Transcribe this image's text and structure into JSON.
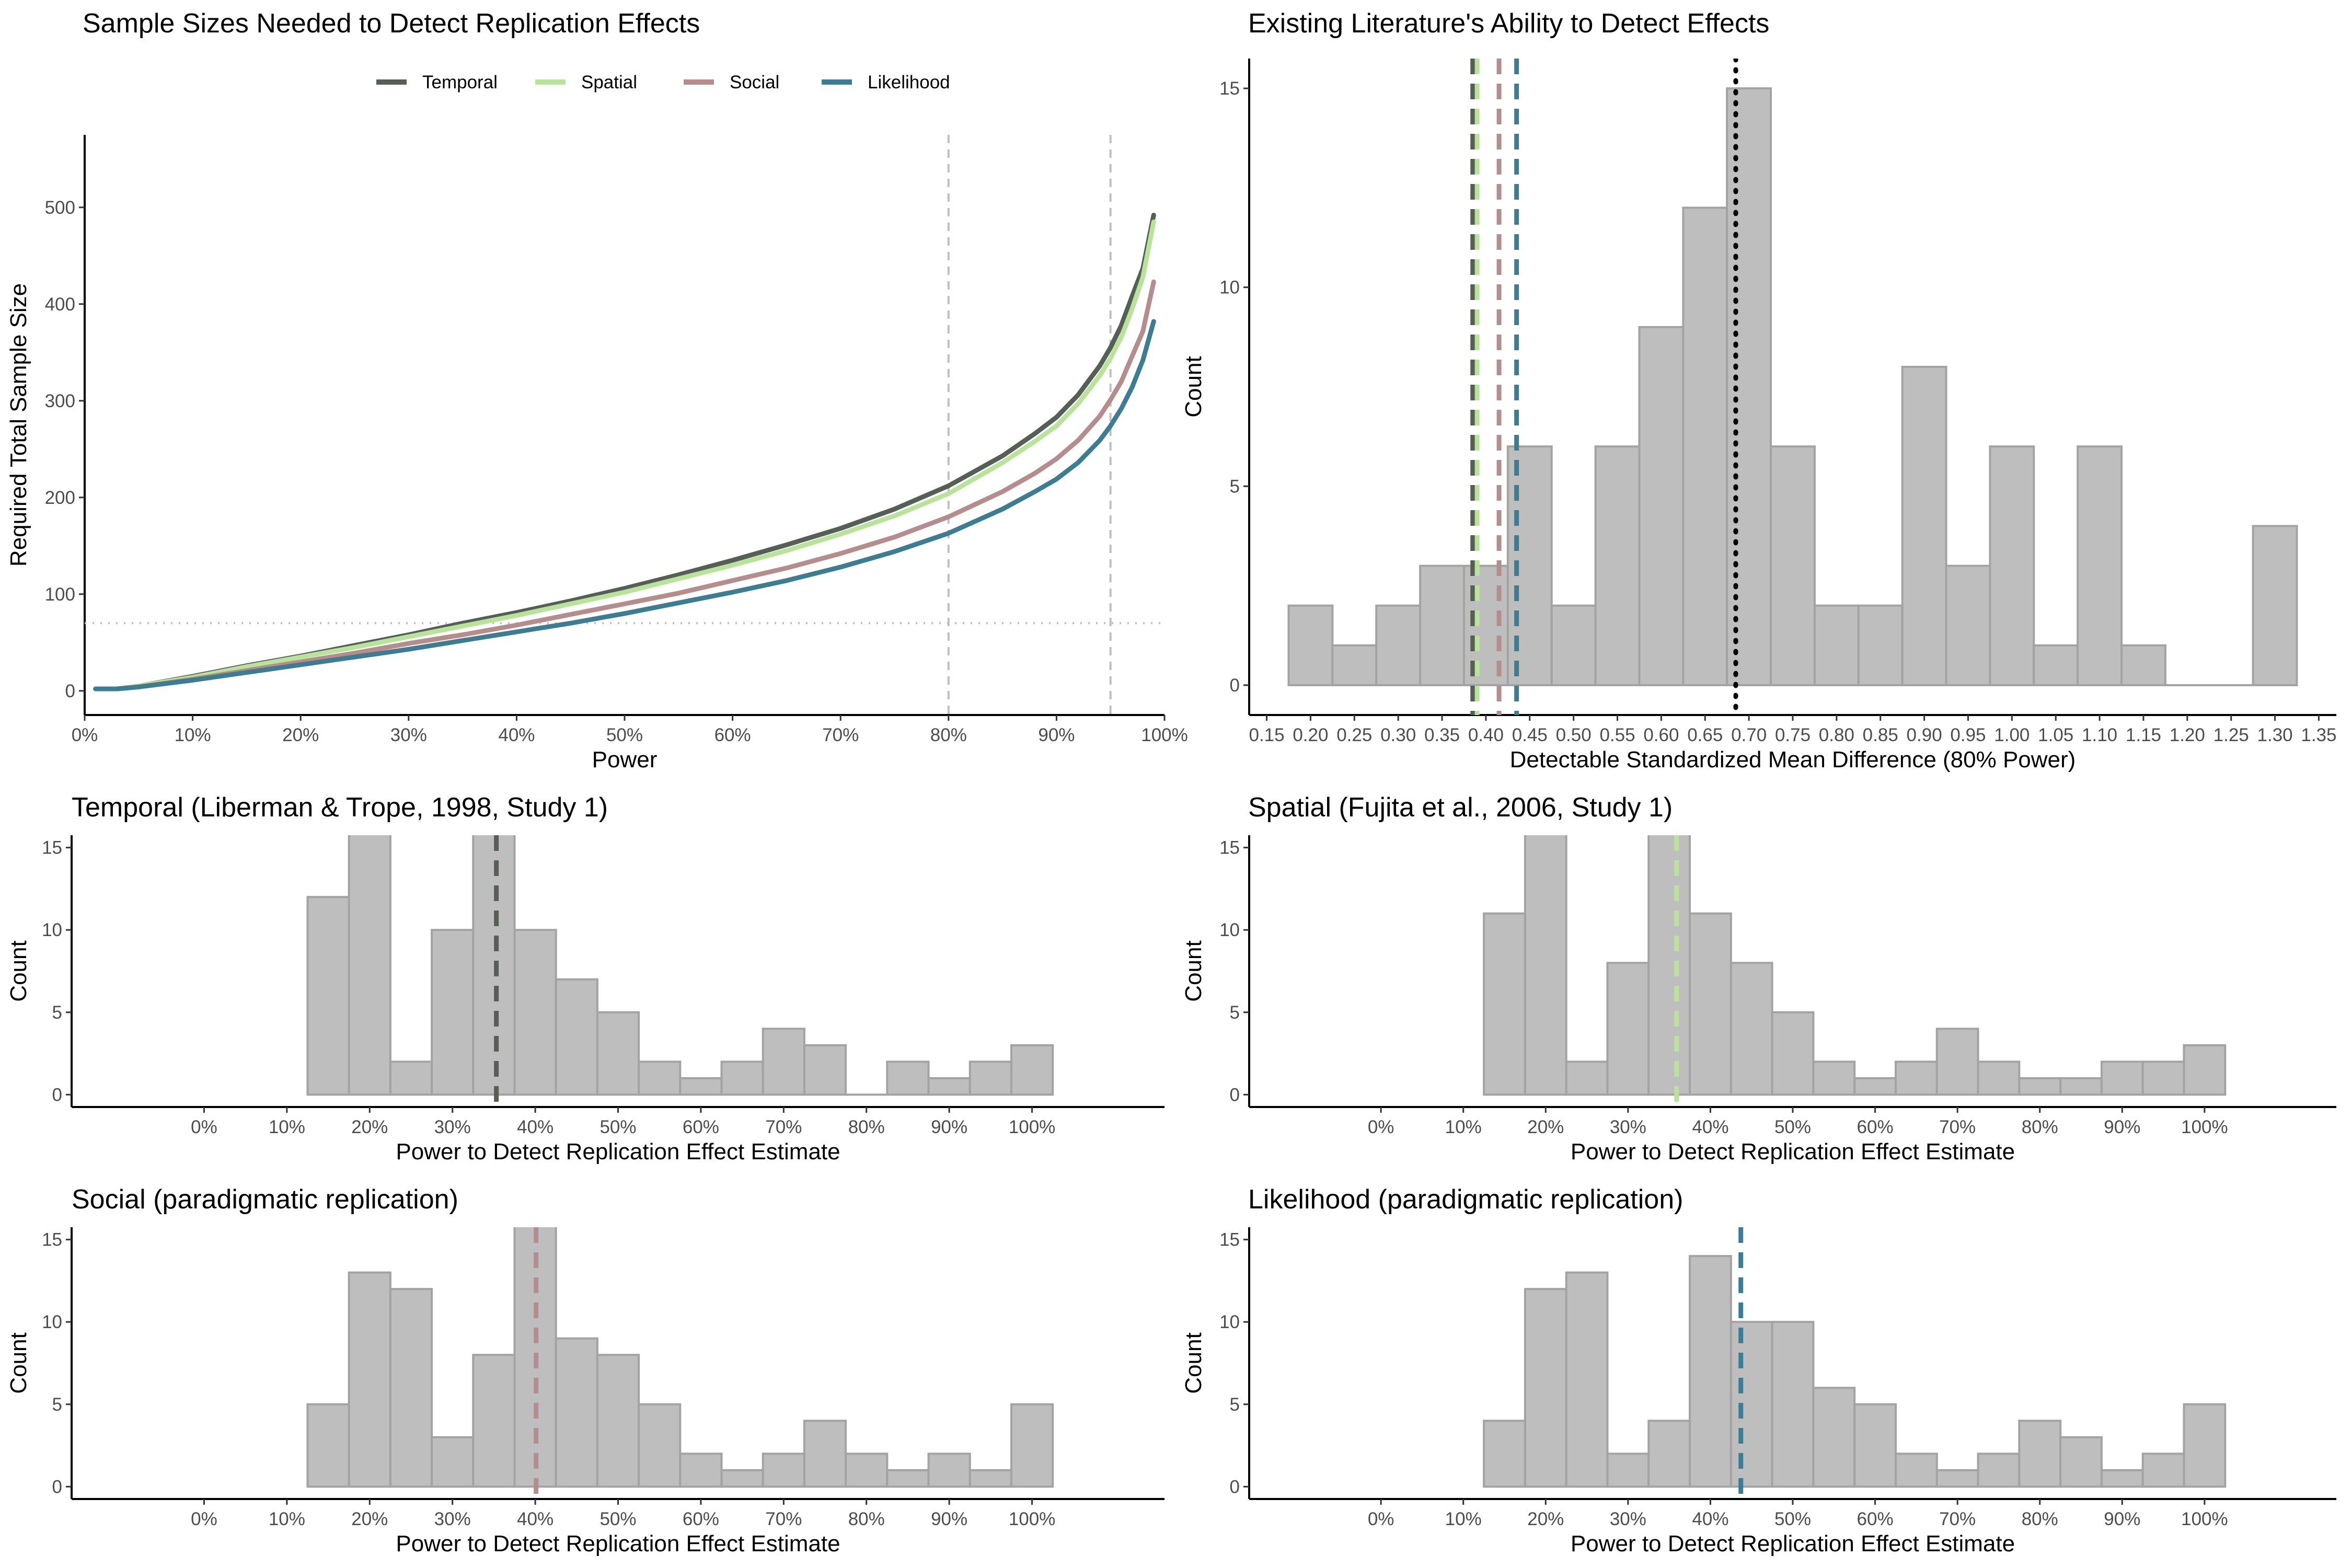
{
  "colors": {
    "temporal": "#555f55",
    "spatial": "#b9e39a",
    "social": "#b58d8c",
    "likelihood": "#3c7d94",
    "bar_fill": "#bebebe",
    "bar_outline": "#a3a3a3",
    "ref_line": "#bfbfbf"
  },
  "chart_data": [
    {
      "id": "sample-size",
      "type": "line",
      "title": "Sample Sizes Needed to Detect Replication Effects",
      "xlabel": "Power",
      "ylabel": "Required Total Sample Size",
      "xlim": [
        0,
        100
      ],
      "ylim": [
        -25,
        575
      ],
      "x_ticks": [
        0,
        10,
        20,
        30,
        40,
        50,
        60,
        70,
        80,
        90,
        100
      ],
      "x_tick_labels": [
        "0%",
        "10%",
        "20%",
        "30%",
        "40%",
        "50%",
        "60%",
        "70%",
        "80%",
        "90%",
        "100%"
      ],
      "y_ticks": [
        0,
        100,
        200,
        300,
        400,
        500
      ],
      "y_tick_labels": [
        "0",
        "100",
        "200",
        "300",
        "400",
        "500"
      ],
      "x": [
        1,
        3,
        5,
        10,
        15,
        20,
        25,
        30,
        35,
        40,
        45,
        50,
        55,
        60,
        65,
        70,
        75,
        80,
        85,
        88,
        90,
        92,
        94,
        95,
        96,
        97,
        98,
        99
      ],
      "series": [
        {
          "name": "Temporal",
          "color_key": "temporal",
          "values": [
            2,
            2,
            5,
            15,
            26,
            36,
            47,
            58,
            70,
            81,
            93,
            106,
            120,
            135,
            151,
            168,
            188,
            212,
            243,
            266,
            283,
            306,
            336,
            355,
            378,
            408,
            437,
            492
          ]
        },
        {
          "name": "Spatial",
          "color_key": "spatial",
          "values": [
            2,
            2,
            5,
            14,
            25,
            35,
            45,
            56,
            67,
            78,
            90,
            102,
            116,
            130,
            145,
            162,
            181,
            204,
            236,
            258,
            274,
            297,
            326,
            344,
            366,
            395,
            428,
            485
          ]
        },
        {
          "name": "Social",
          "color_key": "social",
          "values": [
            2,
            2,
            4,
            12,
            21,
            30,
            39,
            49,
            58,
            68,
            79,
            90,
            101,
            114,
            127,
            142,
            159,
            180,
            206,
            225,
            240,
            259,
            284,
            301,
            320,
            346,
            372,
            423
          ]
        },
        {
          "name": "Likelihood",
          "color_key": "likelihood",
          "values": [
            2,
            2,
            4,
            11,
            19,
            27,
            35,
            43,
            52,
            61,
            70,
            80,
            91,
            102,
            114,
            128,
            144,
            163,
            188,
            206,
            219,
            236,
            259,
            274,
            292,
            314,
            342,
            382
          ]
        }
      ],
      "hlines": [
        70
      ],
      "vlines": [
        80,
        95
      ],
      "legend": "top",
      "grid": false
    },
    {
      "id": "literature",
      "type": "bar",
      "title": "Existing Literature's Ability to Detect Effects",
      "xlabel": "Detectable Standardized Mean Difference (80% Power)",
      "ylabel": "Count",
      "xlim": [
        0.13,
        1.37
      ],
      "ylim": [
        -0.75,
        15.75
      ],
      "x_ticks": [
        0.15,
        0.2,
        0.25,
        0.3,
        0.35,
        0.4,
        0.45,
        0.5,
        0.55,
        0.6,
        0.65,
        0.7,
        0.75,
        0.8,
        0.85,
        0.9,
        0.95,
        1.0,
        1.05,
        1.1,
        1.15,
        1.2,
        1.25,
        1.3,
        1.35
      ],
      "x_tick_labels": [
        "0.15",
        "0.20",
        "0.25",
        "0.30",
        "0.35",
        "0.40",
        "0.45",
        "0.50",
        "0.55",
        "0.60",
        "0.65",
        "0.70",
        "0.75",
        "0.80",
        "0.85",
        "0.90",
        "0.95",
        "1.00",
        "1.05",
        "1.10",
        "1.15",
        "1.20",
        "1.25",
        "1.30",
        "1.35"
      ],
      "y_ticks": [
        0,
        5,
        10,
        15
      ],
      "y_tick_labels": [
        "0",
        "5",
        "10",
        "15"
      ],
      "bin_starts": [
        0.175,
        0.225,
        0.275,
        0.325,
        0.375,
        0.425,
        0.475,
        0.525,
        0.575,
        0.625,
        0.675,
        0.725,
        0.775,
        0.825,
        0.875,
        0.925,
        0.975,
        1.025,
        1.075,
        1.125,
        1.175,
        1.225,
        1.275
      ],
      "bin_ends": [
        0.225,
        0.275,
        0.325,
        0.375,
        0.425,
        0.475,
        0.525,
        0.575,
        0.625,
        0.675,
        0.725,
        0.775,
        0.825,
        0.875,
        0.925,
        0.975,
        1.025,
        1.075,
        1.125,
        1.175,
        1.225,
        1.275,
        1.325
      ],
      "values": [
        2,
        1,
        2,
        3,
        3,
        6,
        2,
        6,
        9,
        12,
        15,
        6,
        2,
        2,
        8,
        3,
        6,
        1,
        6,
        1,
        0,
        0,
        4
      ],
      "vlines": [
        {
          "x": 0.385,
          "color_key": "temporal",
          "style": "dashed"
        },
        {
          "x": 0.39,
          "color_key": "spatial",
          "style": "dashed"
        },
        {
          "x": 0.415,
          "color_key": "social",
          "style": "dashed"
        },
        {
          "x": 0.435,
          "color_key": "likelihood",
          "style": "dashed"
        },
        {
          "x": 0.685,
          "color_key": "black",
          "style": "dotted"
        }
      ]
    },
    {
      "id": "temporal",
      "type": "bar",
      "title": "Temporal (Liberman & Trope, 1998, Study 1)",
      "xlabel": "Power to Detect Replication Effect Estimate",
      "ylabel": "Count",
      "xlim": [
        -16,
        116
      ],
      "ylim": [
        -0.75,
        15.75
      ],
      "x_ticks": [
        0,
        10,
        20,
        30,
        40,
        50,
        60,
        70,
        80,
        90,
        100
      ],
      "x_tick_labels": [
        "0%",
        "10%",
        "20%",
        "30%",
        "40%",
        "50%",
        "60%",
        "70%",
        "80%",
        "90%",
        "100%"
      ],
      "y_ticks": [
        0,
        5,
        10,
        15
      ],
      "y_tick_labels": [
        "0",
        "5",
        "10",
        "15"
      ],
      "bin_starts": [
        12.5,
        17.5,
        22.5,
        27.5,
        32.5,
        37.5,
        42.5,
        47.5,
        52.5,
        57.5,
        62.5,
        67.5,
        72.5,
        77.5,
        82.5,
        87.5,
        92.5,
        97.5
      ],
      "bin_ends": [
        17.5,
        22.5,
        27.5,
        32.5,
        37.5,
        42.5,
        47.5,
        52.5,
        57.5,
        62.5,
        67.5,
        72.5,
        77.5,
        82.5,
        87.5,
        92.5,
        97.5,
        102.5
      ],
      "values": [
        12,
        16,
        2,
        10,
        16,
        10,
        7,
        5,
        2,
        1,
        2,
        4,
        3,
        0,
        2,
        1,
        2,
        3
      ],
      "vlines": [
        {
          "x": 35.3,
          "color_key": "temporal",
          "style": "dashed"
        }
      ]
    },
    {
      "id": "spatial",
      "type": "bar",
      "title": "Spatial (Fujita et al., 2006, Study 1)",
      "xlabel": "Power to Detect Replication Effect Estimate",
      "ylabel": "Count",
      "xlim": [
        -16,
        116
      ],
      "ylim": [
        -0.75,
        15.75
      ],
      "x_ticks": [
        0,
        10,
        20,
        30,
        40,
        50,
        60,
        70,
        80,
        90,
        100
      ],
      "x_tick_labels": [
        "0%",
        "10%",
        "20%",
        "30%",
        "40%",
        "50%",
        "60%",
        "70%",
        "80%",
        "90%",
        "100%"
      ],
      "y_ticks": [
        0,
        5,
        10,
        15
      ],
      "y_tick_labels": [
        "0",
        "5",
        "10",
        "15"
      ],
      "bin_starts": [
        12.5,
        17.5,
        22.5,
        27.5,
        32.5,
        37.5,
        42.5,
        47.5,
        52.5,
        57.5,
        62.5,
        67.5,
        72.5,
        77.5,
        82.5,
        87.5,
        92.5,
        97.5
      ],
      "bin_ends": [
        17.5,
        22.5,
        27.5,
        32.5,
        37.5,
        42.5,
        47.5,
        52.5,
        57.5,
        62.5,
        67.5,
        72.5,
        77.5,
        82.5,
        87.5,
        92.5,
        97.5,
        102.5
      ],
      "values": [
        11,
        16,
        2,
        8,
        16,
        11,
        8,
        5,
        2,
        1,
        2,
        4,
        2,
        1,
        1,
        2,
        2,
        3
      ],
      "vlines": [
        {
          "x": 35.9,
          "color_key": "spatial",
          "style": "dashed"
        }
      ]
    },
    {
      "id": "social",
      "type": "bar",
      "title": "Social (paradigmatic replication)",
      "xlabel": "Power to Detect Replication Effect Estimate",
      "ylabel": "Count",
      "xlim": [
        -16,
        116
      ],
      "ylim": [
        -0.75,
        15.75
      ],
      "x_ticks": [
        0,
        10,
        20,
        30,
        40,
        50,
        60,
        70,
        80,
        90,
        100
      ],
      "x_tick_labels": [
        "0%",
        "10%",
        "20%",
        "30%",
        "40%",
        "50%",
        "60%",
        "70%",
        "80%",
        "90%",
        "100%"
      ],
      "y_ticks": [
        0,
        5,
        10,
        15
      ],
      "y_tick_labels": [
        "0",
        "5",
        "10",
        "15"
      ],
      "bin_starts": [
        12.5,
        17.5,
        22.5,
        27.5,
        32.5,
        37.5,
        42.5,
        47.5,
        52.5,
        57.5,
        62.5,
        67.5,
        72.5,
        77.5,
        82.5,
        87.5,
        92.5,
        97.5
      ],
      "bin_ends": [
        17.5,
        22.5,
        27.5,
        32.5,
        37.5,
        42.5,
        47.5,
        52.5,
        57.5,
        62.5,
        67.5,
        72.5,
        77.5,
        82.5,
        87.5,
        92.5,
        97.5,
        102.5
      ],
      "values": [
        5,
        13,
        12,
        3,
        8,
        16,
        9,
        8,
        5,
        2,
        1,
        2,
        4,
        2,
        1,
        2,
        1,
        5
      ],
      "vlines": [
        {
          "x": 40.1,
          "color_key": "social",
          "style": "dashed"
        }
      ]
    },
    {
      "id": "likelihood",
      "type": "bar",
      "title": "Likelihood (paradigmatic replication)",
      "xlabel": "Power to Detect Replication Effect Estimate",
      "ylabel": "Count",
      "xlim": [
        -16,
        116
      ],
      "ylim": [
        -0.75,
        15.75
      ],
      "x_ticks": [
        0,
        10,
        20,
        30,
        40,
        50,
        60,
        70,
        80,
        90,
        100
      ],
      "x_tick_labels": [
        "0%",
        "10%",
        "20%",
        "30%",
        "40%",
        "50%",
        "60%",
        "70%",
        "80%",
        "90%",
        "100%"
      ],
      "y_ticks": [
        0,
        5,
        10,
        15
      ],
      "y_tick_labels": [
        "0",
        "5",
        "10",
        "15"
      ],
      "bin_starts": [
        12.5,
        17.5,
        22.5,
        27.5,
        32.5,
        37.5,
        42.5,
        47.5,
        52.5,
        57.5,
        62.5,
        67.5,
        72.5,
        77.5,
        82.5,
        87.5,
        92.5,
        97.5
      ],
      "bin_ends": [
        17.5,
        22.5,
        27.5,
        32.5,
        37.5,
        42.5,
        47.5,
        52.5,
        57.5,
        62.5,
        67.5,
        72.5,
        77.5,
        82.5,
        87.5,
        92.5,
        97.5,
        102.5
      ],
      "values": [
        4,
        12,
        13,
        2,
        4,
        14,
        10,
        10,
        6,
        5,
        2,
        1,
        2,
        4,
        3,
        1,
        2,
        5
      ],
      "vlines": [
        {
          "x": 43.7,
          "color_key": "likelihood",
          "style": "dashed"
        }
      ]
    }
  ]
}
